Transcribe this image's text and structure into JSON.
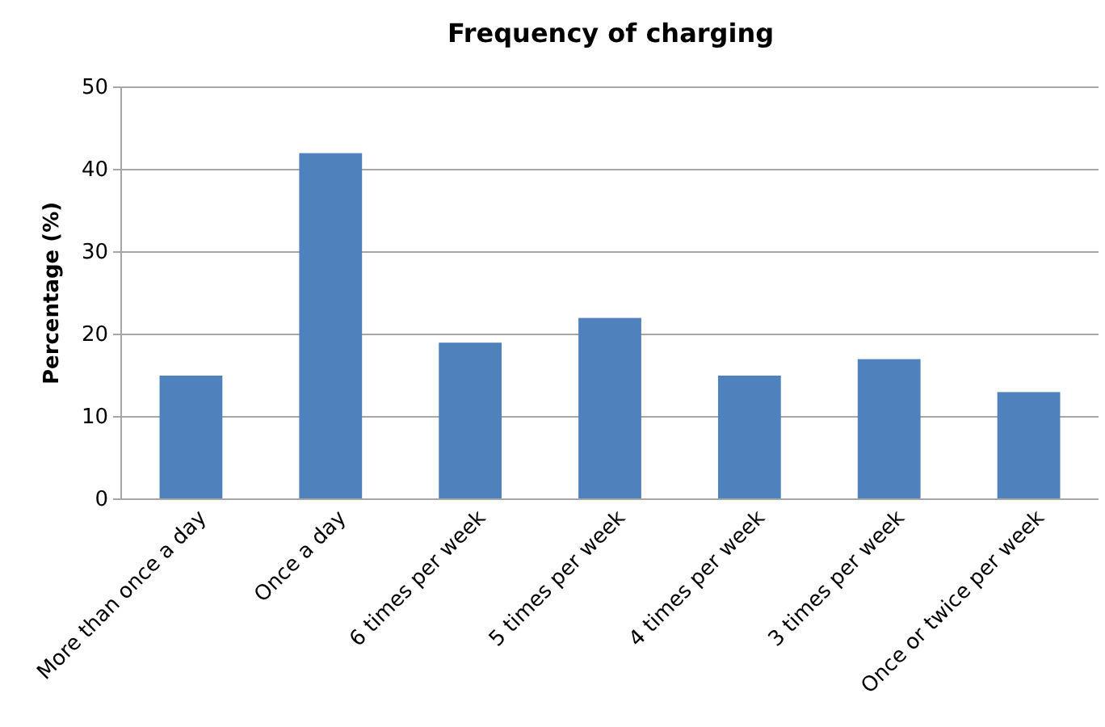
{
  "chart_data": {
    "type": "bar",
    "title": "Frequency of charging",
    "ylabel": "Percentage (%)",
    "categories": [
      "More than once a day",
      "Once a day",
      "6 times per week",
      "5 times per week",
      "4 times per week",
      "3 times per week",
      "Once or twice per week"
    ],
    "values": [
      15,
      42,
      19,
      22,
      15,
      17,
      13
    ],
    "color": "#4f81bd",
    "ylim": [
      0,
      50
    ],
    "yticks": [
      0,
      10,
      20,
      30,
      40,
      50
    ],
    "grid": "y"
  }
}
